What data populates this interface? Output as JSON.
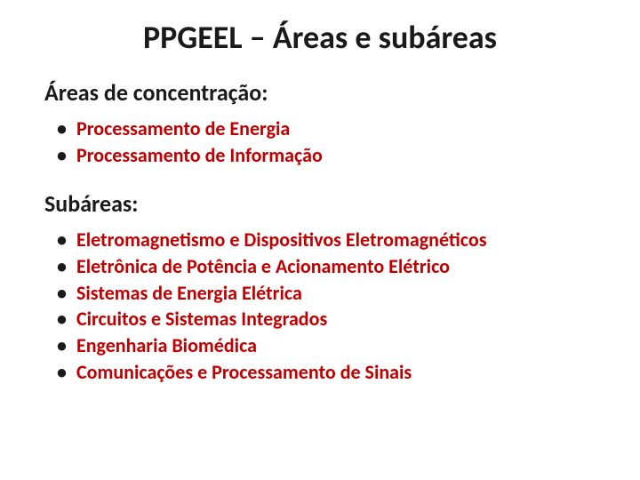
{
  "title": {
    "text": "PPGEEL – Áreas e subáreas",
    "fontsize": 36,
    "color_main": "#1a1a1a",
    "color_accent": "#c00000"
  },
  "section1": {
    "heading": "Áreas de concentração:",
    "heading_fontsize": 26,
    "heading_color": "#1a1a1a",
    "items": [
      {
        "text": "Processamento de Energia"
      },
      {
        "text": "Processamento de Informação"
      }
    ],
    "item_fontsize": 22,
    "item_color": "#c00000"
  },
  "section2": {
    "heading": "Subáreas:",
    "heading_fontsize": 26,
    "heading_color": "#1a1a1a",
    "items": [
      {
        "text": "Eletromagnetismo e Dispositivos Eletromagnéticos"
      },
      {
        "text": "Eletrônica de Potência e Acionamento Elétrico"
      },
      {
        "text": "Sistemas de Energia Elétrica"
      },
      {
        "text": "Circuitos e Sistemas Integrados"
      },
      {
        "text": "Engenharia Biomédica"
      },
      {
        "text": "Comunicações e Processamento de Sinais"
      }
    ],
    "item_fontsize": 22,
    "item_color": "#c00000"
  }
}
